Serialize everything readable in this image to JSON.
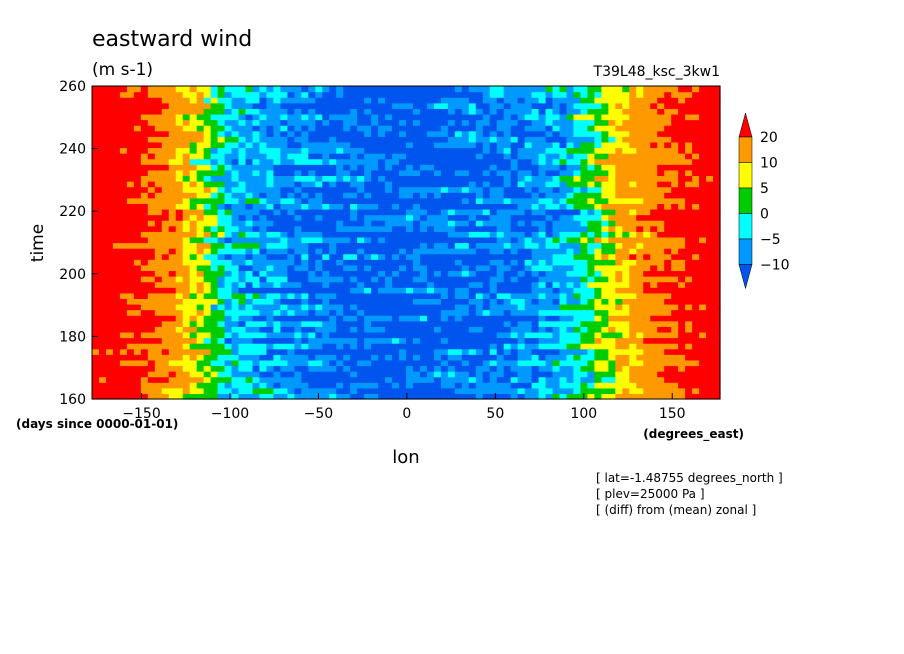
{
  "chart_data": {
    "type": "heatmap",
    "title": "eastward wind",
    "units": "(m s-1)",
    "run_label": "T39L48_ksc_3kw1",
    "xlabel": "lon",
    "x_units": "(degrees_east)",
    "ylabel": "time",
    "y_units": "(days since 0000-01-01)",
    "xlim": [
      -178,
      177
    ],
    "ylim": [
      160,
      260
    ],
    "x_ticks": [
      -150,
      -100,
      -50,
      0,
      50,
      100,
      150
    ],
    "y_ticks": [
      160,
      180,
      200,
      220,
      240,
      260
    ],
    "colorbar": {
      "levels": [
        "20",
        "10",
        "5",
        "0",
        "-5",
        "-10"
      ],
      "colors": [
        "#ff0000",
        "#ff9900",
        "#ffff00",
        "#00cc00",
        "#00ffff",
        "#0099ff",
        "#0055ee"
      ],
      "extend": "both"
    },
    "field_profile": {
      "lon": [
        -178,
        -150,
        -130,
        -115,
        -100,
        -60,
        0,
        60,
        90,
        105,
        120,
        140,
        160,
        177
      ],
      "mean_value": [
        28,
        24,
        14,
        5,
        -5,
        -10,
        -12,
        -10,
        -6,
        2,
        10,
        18,
        24,
        28
      ]
    },
    "notes": [
      "[ lat=-1.48755 degrees_north ]",
      "[ plev=25000 Pa ]",
      "[ (diff) from (mean) zonal ]"
    ]
  }
}
